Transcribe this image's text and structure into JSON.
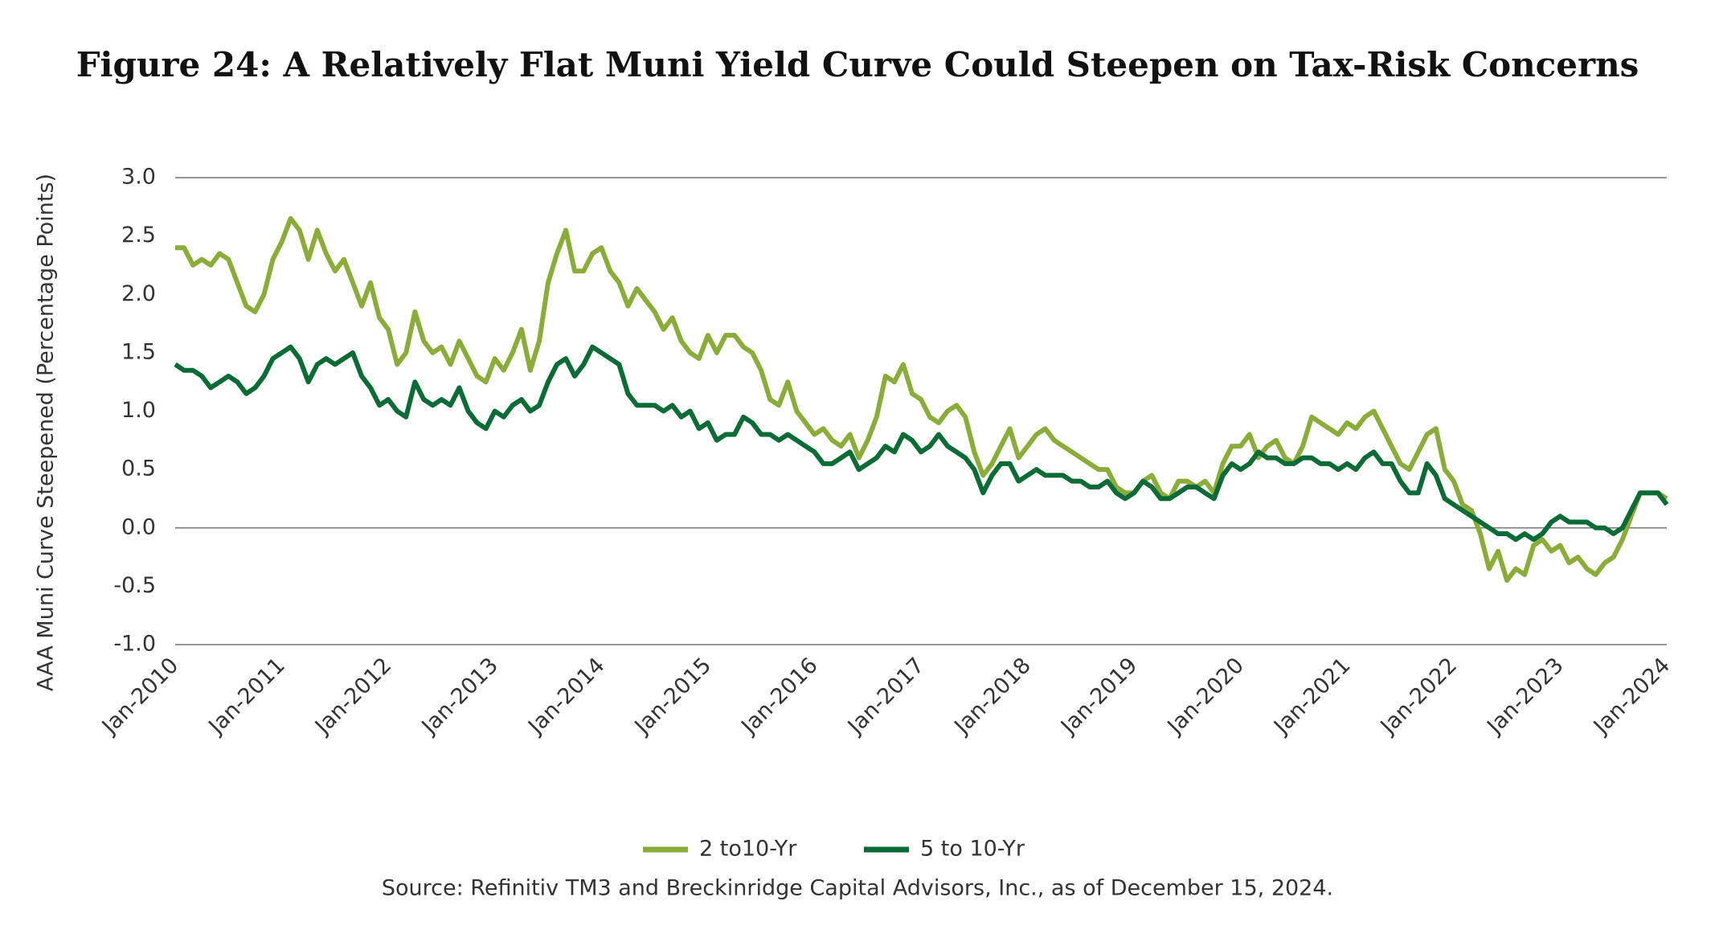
{
  "chart_data": {
    "type": "line",
    "title": "Figure 24: A Relatively Flat Muni Yield Curve Could Steepen on Tax-Risk Concerns",
    "y_label": "AAA Muni Curve Steepened (Percentage Points)",
    "source": "Source: Refinitiv TM3 and Breckinridge Capital Advisors, Inc., as of December 15, 2024.",
    "x": [
      "Jan-2010",
      "Feb-2010",
      "Mar-2010",
      "Apr-2010",
      "May-2010",
      "Jun-2010",
      "Jul-2010",
      "Aug-2010",
      "Sep-2010",
      "Oct-2010",
      "Nov-2010",
      "Dec-2010",
      "Jan-2011",
      "Feb-2011",
      "Mar-2011",
      "Apr-2011",
      "May-2011",
      "Jun-2011",
      "Jul-2011",
      "Aug-2011",
      "Sep-2011",
      "Oct-2011",
      "Nov-2011",
      "Dec-2011",
      "Jan-2012",
      "Feb-2012",
      "Mar-2012",
      "Apr-2012",
      "May-2012",
      "Jun-2012",
      "Jul-2012",
      "Aug-2012",
      "Sep-2012",
      "Oct-2012",
      "Nov-2012",
      "Dec-2012",
      "Jan-2013",
      "Feb-2013",
      "Mar-2013",
      "Apr-2013",
      "May-2013",
      "Jun-2013",
      "Jul-2013",
      "Aug-2013",
      "Sep-2013",
      "Oct-2013",
      "Nov-2013",
      "Dec-2013",
      "Jan-2014",
      "Feb-2014",
      "Mar-2014",
      "Apr-2014",
      "May-2014",
      "Jun-2014",
      "Jul-2014",
      "Aug-2014",
      "Sep-2014",
      "Oct-2014",
      "Nov-2014",
      "Dec-2014",
      "Jan-2015",
      "Feb-2015",
      "Mar-2015",
      "Apr-2015",
      "May-2015",
      "Jun-2015",
      "Jul-2015",
      "Aug-2015",
      "Sep-2015",
      "Oct-2015",
      "Nov-2015",
      "Dec-2015",
      "Jan-2016",
      "Feb-2016",
      "Mar-2016",
      "Apr-2016",
      "May-2016",
      "Jun-2016",
      "Jul-2016",
      "Aug-2016",
      "Sep-2016",
      "Oct-2016",
      "Nov-2016",
      "Dec-2016",
      "Jan-2017",
      "Feb-2017",
      "Mar-2017",
      "Apr-2017",
      "May-2017",
      "Jun-2017",
      "Jul-2017",
      "Aug-2017",
      "Sep-2017",
      "Oct-2017",
      "Nov-2017",
      "Dec-2017",
      "Jan-2018",
      "Feb-2018",
      "Mar-2018",
      "Apr-2018",
      "May-2018",
      "Jun-2018",
      "Jul-2018",
      "Aug-2018",
      "Sep-2018",
      "Oct-2018",
      "Nov-2018",
      "Dec-2018",
      "Jan-2019",
      "Feb-2019",
      "Mar-2019",
      "Apr-2019",
      "May-2019",
      "Jun-2019",
      "Jul-2019",
      "Aug-2019",
      "Sep-2019",
      "Oct-2019",
      "Nov-2019",
      "Dec-2019",
      "Jan-2020",
      "Feb-2020",
      "Mar-2020",
      "Apr-2020",
      "May-2020",
      "Jun-2020",
      "Jul-2020",
      "Aug-2020",
      "Sep-2020",
      "Oct-2020",
      "Nov-2020",
      "Dec-2020",
      "Jan-2021",
      "Feb-2021",
      "Mar-2021",
      "Apr-2021",
      "May-2021",
      "Jun-2021",
      "Jul-2021",
      "Aug-2021",
      "Sep-2021",
      "Oct-2021",
      "Nov-2021",
      "Dec-2021",
      "Jan-2022",
      "Feb-2022",
      "Mar-2022",
      "Apr-2022",
      "May-2022",
      "Jun-2022",
      "Jul-2022",
      "Aug-2022",
      "Sep-2022",
      "Oct-2022",
      "Nov-2022",
      "Dec-2022",
      "Jan-2023",
      "Feb-2023",
      "Mar-2023",
      "Apr-2023",
      "May-2023",
      "Jun-2023",
      "Jul-2023",
      "Aug-2023",
      "Sep-2023",
      "Oct-2023",
      "Nov-2023",
      "Dec-2023",
      "Jan-2024"
    ],
    "xticks": [
      "Jan-2010",
      "Jan-2011",
      "Jan-2012",
      "Jan-2013",
      "Jan-2014",
      "Jan-2015",
      "Jan-2016",
      "Jan-2017",
      "Jan-2018",
      "Jan-2019",
      "Jan-2020",
      "Jan-2021",
      "Jan-2022",
      "Jan-2023",
      "Jan-2024"
    ],
    "series": [
      {
        "name": "2 to10-Yr",
        "color": "#8cac3a",
        "values": [
          2.4,
          2.4,
          2.25,
          2.3,
          2.25,
          2.35,
          2.3,
          2.1,
          1.9,
          1.85,
          2.0,
          2.3,
          2.45,
          2.65,
          2.55,
          2.3,
          2.55,
          2.35,
          2.2,
          2.3,
          2.1,
          1.9,
          2.1,
          1.8,
          1.7,
          1.4,
          1.5,
          1.85,
          1.6,
          1.5,
          1.55,
          1.4,
          1.6,
          1.45,
          1.3,
          1.25,
          1.45,
          1.35,
          1.5,
          1.7,
          1.35,
          1.6,
          2.1,
          2.35,
          2.55,
          2.2,
          2.2,
          2.35,
          2.4,
          2.2,
          2.1,
          1.9,
          2.05,
          1.95,
          1.85,
          1.7,
          1.8,
          1.6,
          1.5,
          1.45,
          1.65,
          1.5,
          1.65,
          1.65,
          1.55,
          1.5,
          1.35,
          1.1,
          1.05,
          1.25,
          1.0,
          0.9,
          0.8,
          0.85,
          0.75,
          0.7,
          0.8,
          0.6,
          0.75,
          0.95,
          1.3,
          1.25,
          1.4,
          1.15,
          1.1,
          0.95,
          0.9,
          1.0,
          1.05,
          0.95,
          0.65,
          0.45,
          0.55,
          0.7,
          0.85,
          0.6,
          0.7,
          0.8,
          0.85,
          0.75,
          0.7,
          0.65,
          0.6,
          0.55,
          0.5,
          0.5,
          0.35,
          0.3,
          0.3,
          0.4,
          0.45,
          0.3,
          0.25,
          0.4,
          0.4,
          0.35,
          0.4,
          0.3,
          0.55,
          0.7,
          0.7,
          0.8,
          0.6,
          0.7,
          0.75,
          0.6,
          0.55,
          0.7,
          0.95,
          0.9,
          0.85,
          0.8,
          0.9,
          0.85,
          0.95,
          1.0,
          0.85,
          0.7,
          0.55,
          0.5,
          0.65,
          0.8,
          0.85,
          0.5,
          0.4,
          0.2,
          0.15,
          -0.05,
          -0.35,
          -0.2,
          -0.45,
          -0.35,
          -0.4,
          -0.15,
          -0.1,
          -0.2,
          -0.15,
          -0.3,
          -0.25,
          -0.35,
          -0.4,
          -0.3,
          -0.25,
          -0.1,
          0.1,
          0.3,
          0.3,
          0.3,
          0.25
        ]
      },
      {
        "name": "5 to 10-Yr",
        "color": "#0a6b36",
        "values": [
          1.4,
          1.35,
          1.35,
          1.3,
          1.2,
          1.25,
          1.3,
          1.25,
          1.15,
          1.2,
          1.3,
          1.45,
          1.5,
          1.55,
          1.45,
          1.25,
          1.4,
          1.45,
          1.4,
          1.45,
          1.5,
          1.3,
          1.2,
          1.05,
          1.1,
          1.0,
          0.95,
          1.25,
          1.1,
          1.05,
          1.1,
          1.05,
          1.2,
          1.0,
          0.9,
          0.85,
          1.0,
          0.95,
          1.05,
          1.1,
          1.0,
          1.05,
          1.25,
          1.4,
          1.45,
          1.3,
          1.4,
          1.55,
          1.5,
          1.45,
          1.4,
          1.15,
          1.05,
          1.05,
          1.05,
          1.0,
          1.05,
          0.95,
          1.0,
          0.85,
          0.9,
          0.75,
          0.8,
          0.8,
          0.95,
          0.9,
          0.8,
          0.8,
          0.75,
          0.8,
          0.75,
          0.7,
          0.65,
          0.55,
          0.55,
          0.6,
          0.65,
          0.5,
          0.55,
          0.6,
          0.7,
          0.65,
          0.8,
          0.75,
          0.65,
          0.7,
          0.8,
          0.7,
          0.65,
          0.6,
          0.5,
          0.3,
          0.45,
          0.55,
          0.55,
          0.4,
          0.45,
          0.5,
          0.45,
          0.45,
          0.45,
          0.4,
          0.4,
          0.35,
          0.35,
          0.4,
          0.3,
          0.25,
          0.3,
          0.4,
          0.35,
          0.25,
          0.25,
          0.3,
          0.35,
          0.35,
          0.3,
          0.25,
          0.45,
          0.55,
          0.5,
          0.55,
          0.65,
          0.6,
          0.6,
          0.55,
          0.55,
          0.6,
          0.6,
          0.55,
          0.55,
          0.5,
          0.55,
          0.5,
          0.6,
          0.65,
          0.55,
          0.55,
          0.4,
          0.3,
          0.3,
          0.55,
          0.45,
          0.25,
          0.2,
          0.15,
          0.1,
          0.05,
          0.0,
          -0.05,
          -0.05,
          -0.1,
          -0.05,
          -0.1,
          -0.05,
          0.05,
          0.1,
          0.05,
          0.05,
          0.05,
          0.0,
          0.0,
          -0.05,
          0.0,
          0.15,
          0.3,
          0.3,
          0.3,
          0.2
        ]
      }
    ],
    "ylim": [
      -1.0,
      3.0
    ],
    "yticks": [
      {
        "value": 3,
        "label": "3.0"
      },
      {
        "value": 2.5,
        "label": "2.5"
      },
      {
        "value": 2,
        "label": "2.0"
      },
      {
        "value": 1.5,
        "label": "1.5"
      },
      {
        "value": 1,
        "label": "1.0"
      },
      {
        "value": 0.5,
        "label": "0.5"
      },
      {
        "value": 0,
        "label": "0.0"
      },
      {
        "value": -0.5,
        "label": "-0.5"
      },
      {
        "value": -1,
        "label": "-1.0"
      }
    ],
    "grid": false
  }
}
